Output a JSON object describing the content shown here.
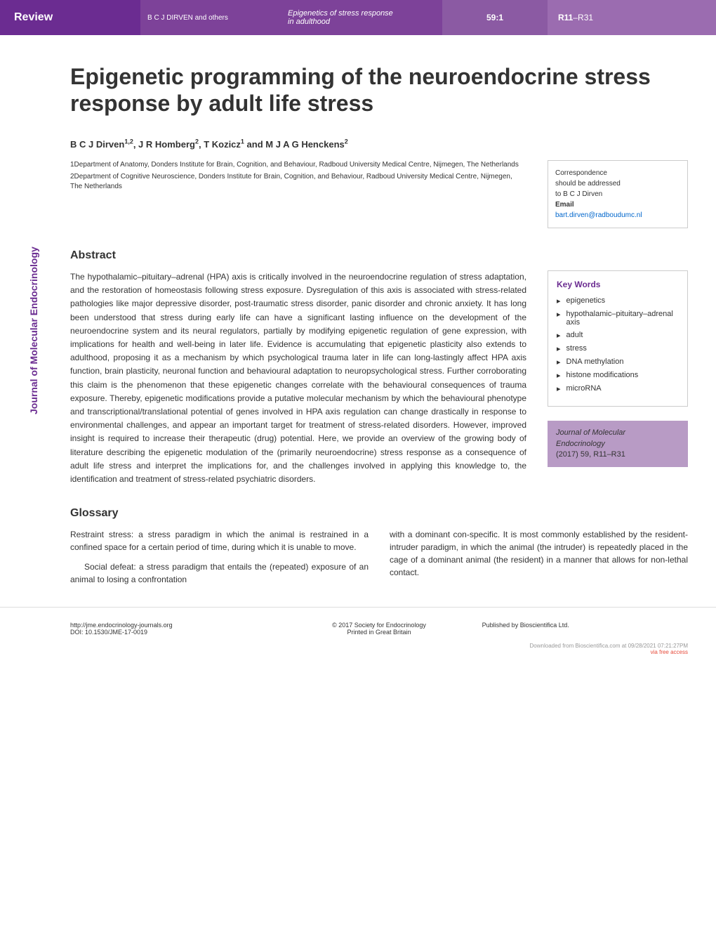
{
  "header": {
    "review_label": "Review",
    "authors_short": "B C J DIRVEN and others",
    "running_title_line1": "Epigenetics of stress response",
    "running_title_line2": "in adulthood",
    "volume": "59:1",
    "page_range_highlight": "R11",
    "page_range_rest": "–R31"
  },
  "sidebar": {
    "vertical_label": "Journal of Molecular Endocrinology"
  },
  "article": {
    "title": "Epigenetic programming of the neuroendocrine stress response by adult life stress",
    "authors": "B C J Dirven1,2, J R Homberg2, T Kozicz1 and M J A G Henckens2",
    "affiliations": [
      "1Department of Anatomy, Donders Institute for Brain, Cognition, and Behaviour, Radboud University Medical Centre, Nijmegen, The Netherlands",
      "2Department of Cognitive Neuroscience, Donders Institute for Brain, Cognition, and Behaviour, Radboud University Medical Centre, Nijmegen, The Netherlands"
    ],
    "correspondence": {
      "line1": "Correspondence",
      "line2": "should be addressed",
      "line3": "to B C J Dirven",
      "email_label": "Email",
      "email": "bart.dirven@radboudumc.nl"
    }
  },
  "abstract": {
    "heading": "Abstract",
    "text": "The hypothalamic–pituitary–adrenal (HPA) axis is critically involved in the neuroendocrine regulation of stress adaptation, and the restoration of homeostasis following stress exposure. Dysregulation of this axis is associated with stress-related pathologies like major depressive disorder, post-traumatic stress disorder, panic disorder and chronic anxiety. It has long been understood that stress during early life can have a significant lasting influence on the development of the neuroendocrine system and its neural regulators, partially by modifying epigenetic regulation of gene expression, with implications for health and well-being in later life. Evidence is accumulating that epigenetic plasticity also extends to adulthood, proposing it as a mechanism by which psychological trauma later in life can long-lastingly affect HPA axis function, brain plasticity, neuronal function and behavioural adaptation to neuropsychological stress. Further corroborating this claim is the phenomenon that these epigenetic changes correlate with the behavioural consequences of trauma exposure. Thereby, epigenetic modifications provide a putative molecular mechanism by which the behavioural phenotype and transcriptional/translational potential of genes involved in HPA axis regulation can change drastically in response to environmental challenges, and appear an important target for treatment of stress-related disorders. However, improved insight is required to increase their therapeutic (drug) potential. Here, we provide an overview of the growing body of literature describing the epigenetic modulation of the (primarily neuroendocrine) stress response as a consequence of adult life stress and interpret the implications for, and the challenges involved in applying this knowledge to, the identification and treatment of stress-related psychiatric disorders."
  },
  "keywords": {
    "heading": "Key Words",
    "items": [
      "epigenetics",
      "hypothalamic–pituitary–adrenal axis",
      "adult",
      "stress",
      "DNA methylation",
      "histone modifications",
      "microRNA"
    ]
  },
  "journal_info": {
    "line1": "Journal of Molecular",
    "line2": "Endocrinology",
    "line3": "(2017) 59, R11–R31"
  },
  "glossary": {
    "heading": "Glossary",
    "col1_para1": "Restraint stress: a stress paradigm in which the animal is restrained in a confined space for a certain period of time, during which it is unable to move.",
    "col1_para2": "Social defeat: a stress paradigm that entails the (repeated) exposure of an animal to losing a confrontation",
    "col2_para1": "with a dominant con-specific. It is most commonly established by the resident-intruder paradigm, in which the animal (the intruder) is repeatedly placed in the cage of a dominant animal (the resident) in a manner that allows for non-lethal contact."
  },
  "footer": {
    "url": "http://jme.endocrinology-journals.org",
    "doi": "DOI: 10.1530/JME-17-0019",
    "copyright_line1": "© 2017 Society for Endocrinology",
    "copyright_line2": "Printed in Great Britain",
    "published": "Published by Bioscientifica Ltd.",
    "download_text": "Downloaded from Bioscientifica.com at 09/28/2021 07:21:27PM",
    "free_access": "via free access"
  },
  "colors": {
    "purple_dark": "#6b2c91",
    "purple_mid": "#7d4299",
    "purple_light": "#8b5aa3",
    "purple_lighter": "#9b6cb0",
    "purple_pale": "#b89bc5"
  }
}
